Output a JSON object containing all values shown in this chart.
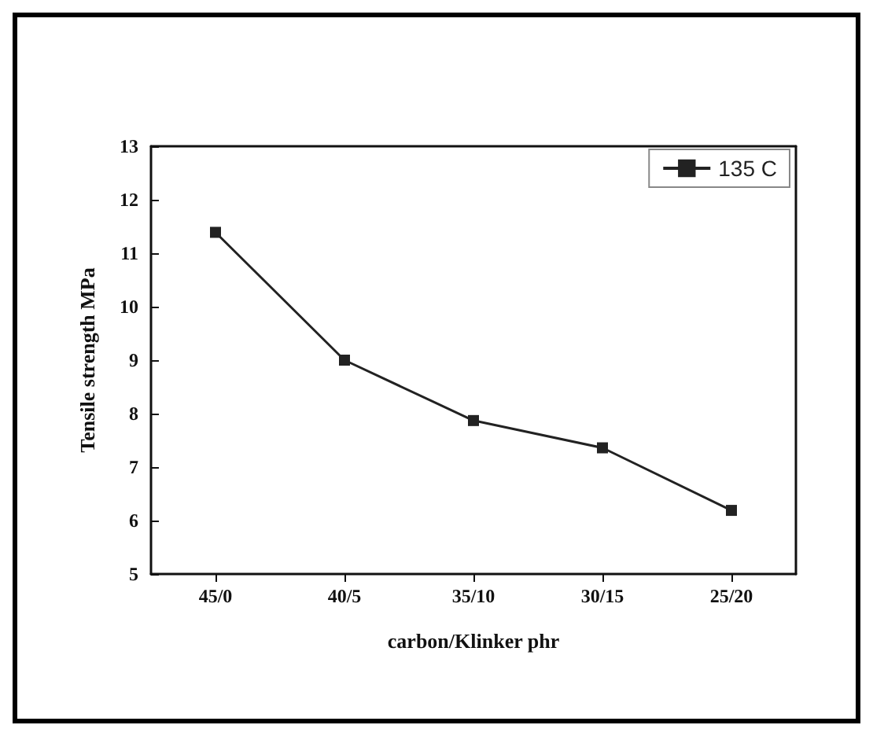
{
  "chart_data": {
    "type": "line",
    "xlabel": "carbon/Klinker phr",
    "ylabel": "Tensile strength MPa",
    "categories": [
      "45/0",
      "40/5",
      "35/10",
      "30/15",
      "25/20"
    ],
    "series": [
      {
        "name": "135 C",
        "color": "#222222",
        "values": [
          11.39,
          9.0,
          7.87,
          7.36,
          6.19
        ]
      }
    ],
    "ylim": [
      5,
      13
    ],
    "yticks": [
      5,
      6,
      7,
      8,
      9,
      10,
      11,
      12,
      13
    ],
    "marker": "square",
    "line_style": "solid",
    "legend": "top right",
    "grid": false
  }
}
